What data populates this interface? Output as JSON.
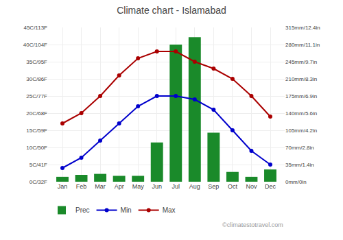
{
  "chart_data": {
    "type": "bar",
    "title": "Climate chart - Islamabad",
    "categories": [
      "Jan",
      "Feb",
      "Mar",
      "Apr",
      "May",
      "Jun",
      "Jul",
      "Aug",
      "Sep",
      "Oct",
      "Nov",
      "Dec"
    ],
    "series": [
      {
        "name": "Prec",
        "type": "bar",
        "axis": "y2",
        "color": "#1a8a2a",
        "values": [
          10,
          14,
          16,
          12,
          12,
          80,
          280,
          295,
          100,
          20,
          10,
          25
        ]
      },
      {
        "name": "Min",
        "type": "line",
        "marker": "circle",
        "color": "#0000cc",
        "values": [
          4,
          7,
          12,
          17,
          22,
          25,
          25,
          24,
          21,
          15,
          9,
          5
        ]
      },
      {
        "name": "Max",
        "type": "line",
        "marker": "circle",
        "color": "#aa0000",
        "values": [
          17,
          20,
          25,
          31,
          36,
          38,
          38,
          35,
          33,
          30,
          25,
          19
        ]
      }
    ],
    "ylim": [
      0,
      45
    ],
    "yticks": [
      {
        "value": 0,
        "label": "0C/32F"
      },
      {
        "value": 5,
        "label": "5C/41F"
      },
      {
        "value": 10,
        "label": "10C/50F"
      },
      {
        "value": 15,
        "label": "15C/59F"
      },
      {
        "value": 20,
        "label": "20C/68F"
      },
      {
        "value": 25,
        "label": "25C/77F"
      },
      {
        "value": 30,
        "label": "30C/86F"
      },
      {
        "value": 35,
        "label": "35C/95F"
      },
      {
        "value": 40,
        "label": "40C/104F"
      },
      {
        "value": 45,
        "label": "45C/113F"
      }
    ],
    "y2lim": [
      0,
      315
    ],
    "y2ticks": [
      {
        "value": 0,
        "label": "0mm/0in"
      },
      {
        "value": 35,
        "label": "35mm/1.4in"
      },
      {
        "value": 70,
        "label": "70mm/2.8in"
      },
      {
        "value": 105,
        "label": "105mm/4.2in"
      },
      {
        "value": 140,
        "label": "140mm/5.6in"
      },
      {
        "value": 175,
        "label": "175mm/6.9in"
      },
      {
        "value": 210,
        "label": "210mm/8.3in"
      },
      {
        "value": 245,
        "label": "245mm/9.7in"
      },
      {
        "value": 280,
        "label": "280mm/11.1in"
      },
      {
        "value": 315,
        "label": "315mm/12.4in"
      }
    ],
    "grid": true,
    "legend": "bottom",
    "annotations": [
      "©climatestotravel.com"
    ]
  }
}
